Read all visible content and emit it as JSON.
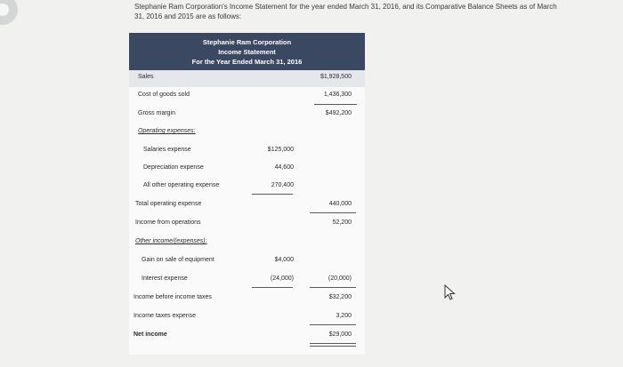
{
  "prompt": {
    "line1": "Stephanie Ram Corporation's Income Statement for the year ended March 31, 2016, and its Comparative Balance Sheets as of March",
    "line2": "31, 2016 and 2015 are as follows:"
  },
  "statement": {
    "company": "Stephanie Ram Corporation",
    "title": "Income Statement",
    "period": "For the Year Ended March 31, 2016",
    "rows": [
      {
        "label": "Sales",
        "mid": "",
        "right": "$1,928,500"
      },
      {
        "label": "Cost of goods sold",
        "mid": "",
        "right": "1,436,300"
      },
      {
        "label": "Gross margin",
        "mid": "",
        "right": "$492,200"
      },
      {
        "label": "Operating expenses:",
        "mid": "",
        "right": ""
      },
      {
        "label": "Salaries expense",
        "mid": "$125,000",
        "right": ""
      },
      {
        "label": "Depreciation expense",
        "mid": "44,600",
        "right": ""
      },
      {
        "label": "All other operating expense",
        "mid": "270,400",
        "right": ""
      },
      {
        "label": "Total operating expense",
        "mid": "",
        "right": "440,000"
      },
      {
        "label": "Income from operations",
        "mid": "",
        "right": "52,200"
      },
      {
        "label": "Other income/(expenses):",
        "mid": "",
        "right": ""
      },
      {
        "label": "Gain on sale of equipment",
        "mid": "$4,000",
        "right": ""
      },
      {
        "label": "Interest expense",
        "mid": "(24,000)",
        "right": "(20,000)"
      },
      {
        "label": "Income before income taxes",
        "mid": "",
        "right": "$32,200"
      },
      {
        "label": "Income taxes expense",
        "mid": "",
        "right": "3,200"
      },
      {
        "label": "Net income",
        "mid": "",
        "right": "$29,000"
      }
    ]
  },
  "icons": {
    "cursor": "mouse-pointer-icon"
  }
}
